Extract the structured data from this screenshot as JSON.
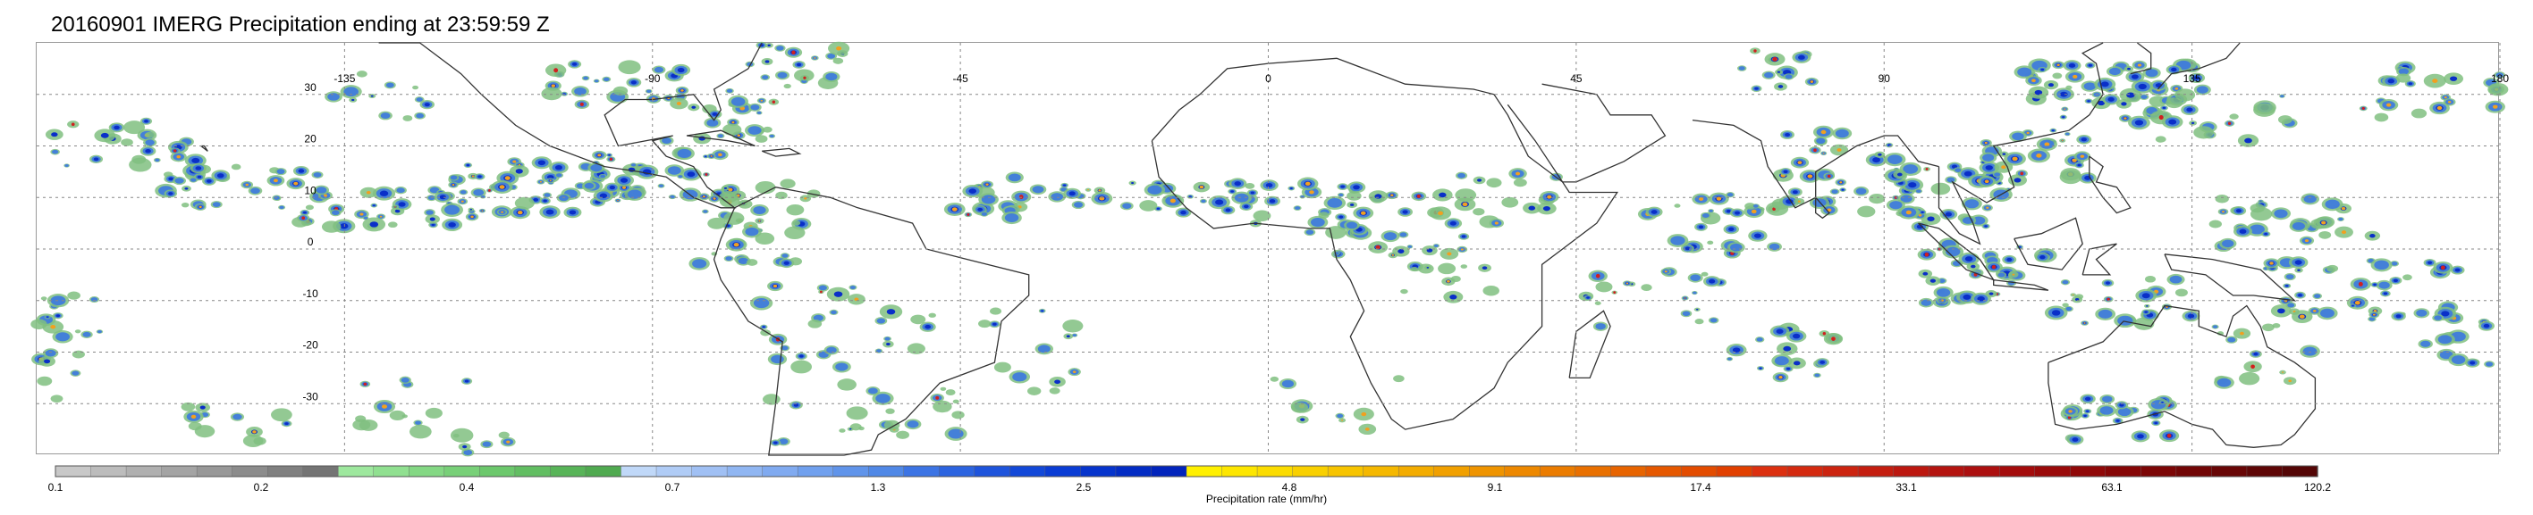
{
  "title": "20160901 IMERG Precipitation ending at 23:59:59 Z",
  "map": {
    "projection": "equirectangular",
    "lon_range": [
      -180,
      180
    ],
    "lat_range": [
      -40,
      40
    ],
    "gridlines": "dotted",
    "lon_ticks": [
      "-135",
      "-90",
      "-45",
      "0",
      "45",
      "90",
      "135",
      "180"
    ],
    "lat_ticks": [
      "30",
      "20",
      "10",
      "0",
      "-10",
      "-20",
      "-30"
    ]
  },
  "colorbar": {
    "label": "Precipitation rate (mm/hr)",
    "tick_labels": [
      "0.1",
      "0.2",
      "0.4",
      "0.7",
      "1.3",
      "2.5",
      "4.8",
      "9.1",
      "17.4",
      "33.1",
      "63.1",
      "120.2"
    ],
    "segment_colors": [
      "#c8c8c8",
      "#bcbcbc",
      "#b0b0b0",
      "#a4a4a4",
      "#989898",
      "#8c8c8c",
      "#808080",
      "#747474",
      "#9ee89e",
      "#90e090",
      "#84d884",
      "#78d078",
      "#6cc86c",
      "#62be62",
      "#58b458",
      "#50aa50",
      "#c0d8f8",
      "#b0ccf6",
      "#a0c0f4",
      "#90b6f2",
      "#80aaf0",
      "#70a0ee",
      "#6094ea",
      "#5088e6",
      "#3c74e4",
      "#2c64e0",
      "#1e54dc",
      "#1248d8",
      "#0a3cd4",
      "#0634cc",
      "#032cc4",
      "#0224bc",
      "#fff000",
      "#fde600",
      "#fbdc00",
      "#f9d000",
      "#f7c400",
      "#f5b800",
      "#f3ac00",
      "#f1a000",
      "#ef9400",
      "#ed8800",
      "#eb7c00",
      "#e97000",
      "#e76400",
      "#e55800",
      "#e34c00",
      "#e14000",
      "#dc3010",
      "#d42a10",
      "#cc2410",
      "#c41e10",
      "#bc1810",
      "#b41410",
      "#ac1010",
      "#a40c0c",
      "#9a0a0a",
      "#900808",
      "#860606",
      "#7c0606",
      "#720606",
      "#680606",
      "#5e0606",
      "#540606"
    ]
  },
  "precip_colors": {
    "light": "#80c080",
    "moderate": "#3c78e0",
    "heavy": "#0a2fc8",
    "intense": "#f0a020",
    "extreme": "#d02020"
  }
}
